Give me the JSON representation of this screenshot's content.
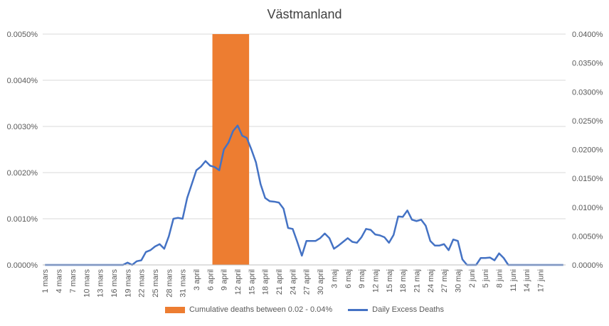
{
  "chart_data": {
    "type": "bar+line",
    "title": "Västmanland",
    "left_axis": {
      "ticks": [
        "0.0000%",
        "0.0010%",
        "0.0020%",
        "0.0030%",
        "0.0040%",
        "0.0050%"
      ],
      "range": [
        0,
        0.005
      ]
    },
    "right_axis": {
      "ticks": [
        "0.0000%",
        "0.0050%",
        "0.0100%",
        "0.0150%",
        "0.0200%",
        "0.0250%",
        "0.0300%",
        "0.0350%",
        "0.0400%"
      ],
      "range": [
        0,
        0.04
      ]
    },
    "x_tick_labels": [
      "1 mars",
      "4 mars",
      "7 mars",
      "10 mars",
      "13 mars",
      "16 mars",
      "19 mars",
      "22 mars",
      "25 mars",
      "28 mars",
      "31 mars",
      "3 april",
      "6 april",
      "9 april",
      "12 april",
      "15 april",
      "18 april",
      "21 april",
      "24 april",
      "27 april",
      "30 april",
      "3 maj",
      "6 maj",
      "9 maj",
      "12 maj",
      "15 maj",
      "18 maj",
      "21 maj",
      "24 maj",
      "27 maj",
      "30 maj",
      "2 juni",
      "5 juni",
      "8 juni",
      "11 juni",
      "14 juni",
      "17 juni"
    ],
    "bar_series": {
      "name": "Cumulative deaths between 0.02 - 0.04%",
      "color": "#ED7D31",
      "start_day_index": 37,
      "end_day_index": 45,
      "value": 0.005
    },
    "line_series": {
      "name": "Daily Excess Deaths",
      "color": "#4472C4",
      "values": [
        0,
        0,
        0,
        0,
        0,
        0,
        0,
        0,
        0,
        0,
        0,
        0,
        0,
        0,
        0,
        0,
        0,
        0,
        5e-05,
        0,
        8e-05,
        0.0001,
        0.00028,
        0.00032,
        0.0004,
        0.00045,
        0.00035,
        0.00062,
        0.001,
        0.00102,
        0.001,
        0.00145,
        0.00175,
        0.00205,
        0.00213,
        0.00225,
        0.00215,
        0.00212,
        0.00205,
        0.0025,
        0.00265,
        0.0029,
        0.00302,
        0.0028,
        0.00275,
        0.0025,
        0.00222,
        0.00175,
        0.00145,
        0.00138,
        0.00137,
        0.00135,
        0.00122,
        0.0008,
        0.00078,
        0.0005,
        0.0002,
        0.00052,
        0.00052,
        0.00052,
        0.00058,
        0.00068,
        0.00058,
        0.00035,
        0.00042,
        0.0005,
        0.00058,
        0.0005,
        0.00048,
        0.0006,
        0.00078,
        0.00076,
        0.00066,
        0.00064,
        0.0006,
        0.00048,
        0.00065,
        0.00105,
        0.00104,
        0.00118,
        0.00098,
        0.00095,
        0.00098,
        0.00085,
        0.00052,
        0.00042,
        0.00042,
        0.00045,
        0.00032,
        0.00055,
        0.00052,
        0.00012,
        0,
        0,
        0,
        0.00015,
        0.00015,
        0.00016,
        0.0001,
        0.00025,
        0.00015,
        0,
        0,
        0,
        0,
        0,
        0,
        0,
        0,
        0,
        0,
        0,
        0,
        0
      ]
    }
  }
}
